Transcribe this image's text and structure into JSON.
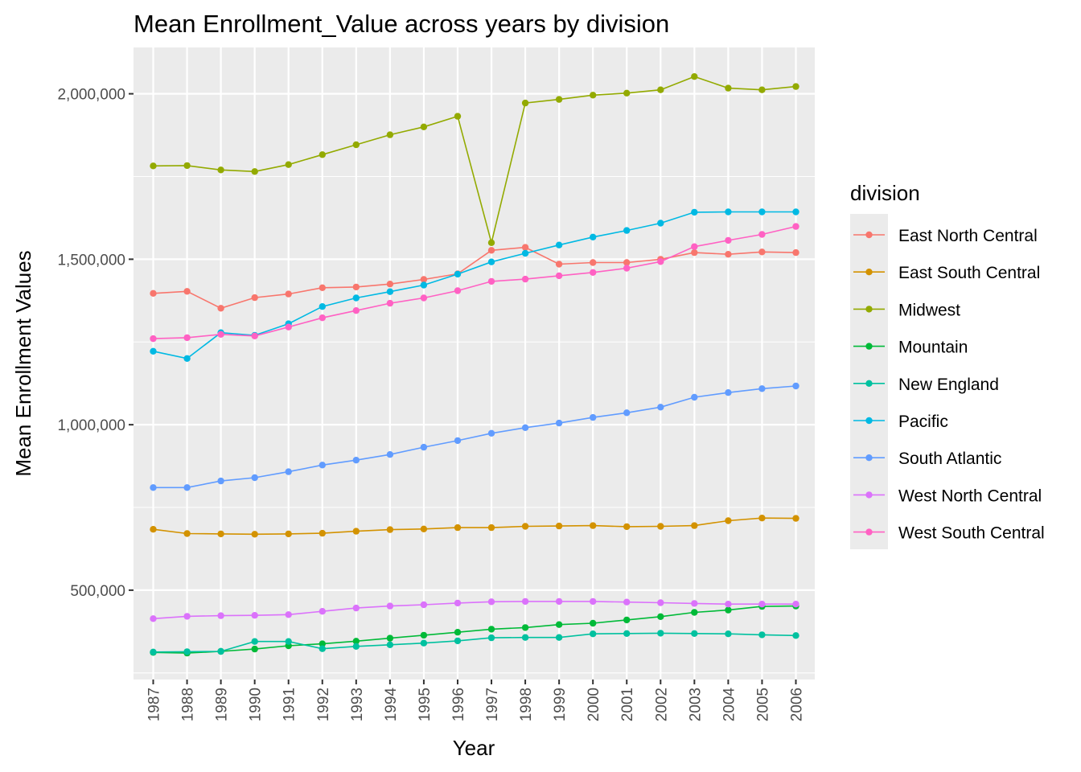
{
  "chart_data": {
    "type": "line",
    "title": "Mean Enrollment_Value across years by division",
    "xlabel": "Year",
    "ylabel": "Mean Enrollment Values",
    "x": [
      "1987",
      "1988",
      "1989",
      "1990",
      "1991",
      "1992",
      "1993",
      "1994",
      "1995",
      "1996",
      "1997",
      "1998",
      "1999",
      "2000",
      "2001",
      "2002",
      "2003",
      "2004",
      "2005",
      "2006"
    ],
    "ylim": [
      230000,
      2140000
    ],
    "yticks": [
      500000,
      1000000,
      1500000,
      2000000
    ],
    "ytick_labels": [
      "500,000",
      "1,000,000",
      "1,500,000",
      "2,000,000"
    ],
    "grid": true,
    "legend_title": "division",
    "legend_position": "right",
    "series": [
      {
        "name": "East North Central",
        "color": "#F8766D",
        "values": [
          1397000,
          1403000,
          1352000,
          1384000,
          1395000,
          1414000,
          1416000,
          1425000,
          1439000,
          1456000,
          1527000,
          1536000,
          1485000,
          1490000,
          1490000,
          1500000,
          1520000,
          1515000,
          1522000,
          1520000
        ]
      },
      {
        "name": "East South Central",
        "color": "#D39200",
        "values": [
          684000,
          671000,
          670000,
          669000,
          670000,
          672000,
          678000,
          683000,
          685000,
          689000,
          689000,
          693000,
          694000,
          695000,
          692000,
          693000,
          695000,
          710000,
          718000,
          717000
        ]
      },
      {
        "name": "Midwest",
        "color": "#93AA00",
        "values": [
          1782000,
          1783000,
          1770000,
          1765000,
          1786000,
          1816000,
          1846000,
          1876000,
          1900000,
          1932000,
          1550000,
          1972000,
          1983000,
          1996000,
          2002000,
          2012000,
          2052000,
          2017000,
          2012000,
          2022000
        ]
      },
      {
        "name": "Mountain",
        "color": "#00BA38",
        "values": [
          312000,
          310000,
          315000,
          322000,
          332000,
          338000,
          346000,
          355000,
          364000,
          373000,
          382000,
          387000,
          396000,
          400000,
          410000,
          420000,
          433000,
          440000,
          451000,
          452000
        ]
      },
      {
        "name": "New England",
        "color": "#00C19F",
        "values": [
          313000,
          314000,
          315000,
          345000,
          345000,
          323000,
          330000,
          335000,
          340000,
          347000,
          356000,
          357000,
          357000,
          368000,
          369000,
          370000,
          369000,
          368000,
          365000,
          363000
        ]
      },
      {
        "name": "Pacific",
        "color": "#00B9E3",
        "values": [
          1222000,
          1200000,
          1278000,
          1270000,
          1305000,
          1357000,
          1383000,
          1402000,
          1422000,
          1455000,
          1492000,
          1518000,
          1543000,
          1567000,
          1587000,
          1609000,
          1642000,
          1643000,
          1643000,
          1643000
        ]
      },
      {
        "name": "South Atlantic",
        "color": "#619CFF",
        "values": [
          810000,
          810000,
          830000,
          840000,
          858000,
          878000,
          893000,
          910000,
          932000,
          952000,
          974000,
          991000,
          1005000,
          1022000,
          1036000,
          1053000,
          1083000,
          1097000,
          1109000,
          1117000
        ]
      },
      {
        "name": "West North Central",
        "color": "#DB72FB",
        "values": [
          414000,
          421000,
          423000,
          424000,
          426000,
          436000,
          446000,
          452000,
          456000,
          461000,
          465000,
          466000,
          466000,
          466000,
          464000,
          462000,
          460000,
          458000,
          458000,
          458000
        ]
      },
      {
        "name": "West South Central",
        "color": "#FF61C3",
        "values": [
          1260000,
          1263000,
          1273000,
          1268000,
          1295000,
          1323000,
          1345000,
          1367000,
          1383000,
          1405000,
          1433000,
          1440000,
          1450000,
          1460000,
          1473000,
          1493000,
          1538000,
          1557000,
          1575000,
          1599000
        ]
      }
    ]
  }
}
